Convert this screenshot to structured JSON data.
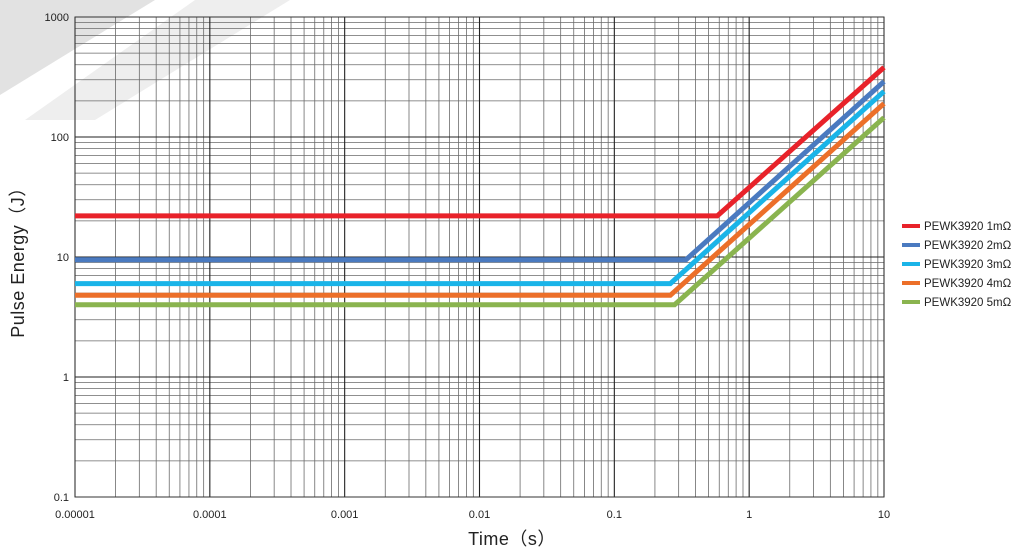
{
  "chart_data": {
    "type": "line",
    "xlabel": "Time（s）",
    "ylabel": "Pulse Energy（J）",
    "x_scale": "log",
    "y_scale": "log",
    "xlim": [
      1e-05,
      10
    ],
    "ylim": [
      0.1,
      1000
    ],
    "x_ticks": [
      "0.00001",
      "0.0001",
      "0.001",
      "0.01",
      "0.1",
      "1",
      "10"
    ],
    "y_ticks": [
      "0.1",
      "1",
      "10",
      "100",
      "1000"
    ],
    "grid": true,
    "legend_position": "right",
    "series": [
      {
        "name": "PEWK3920 1mΩ",
        "color": "#e8222a",
        "points": [
          [
            1e-05,
            22
          ],
          [
            0.58,
            22
          ],
          [
            10,
            380
          ]
        ]
      },
      {
        "name": "PEWK3920 2mΩ",
        "color": "#4a7ac0",
        "points": [
          [
            1e-05,
            9.5
          ],
          [
            0.34,
            9.5
          ],
          [
            10,
            290
          ]
        ]
      },
      {
        "name": "PEWK3920 3mΩ",
        "color": "#1ab4e8",
        "points": [
          [
            1e-05,
            6
          ],
          [
            0.26,
            6
          ],
          [
            10,
            240
          ]
        ]
      },
      {
        "name": "PEWK3920 4mΩ",
        "color": "#ec6f29",
        "points": [
          [
            1e-05,
            4.8
          ],
          [
            0.26,
            4.8
          ],
          [
            10,
            190
          ]
        ]
      },
      {
        "name": "PEWK3920 5mΩ",
        "color": "#8ab44f",
        "points": [
          [
            1e-05,
            4
          ],
          [
            0.28,
            4
          ],
          [
            10,
            145
          ]
        ]
      }
    ]
  }
}
